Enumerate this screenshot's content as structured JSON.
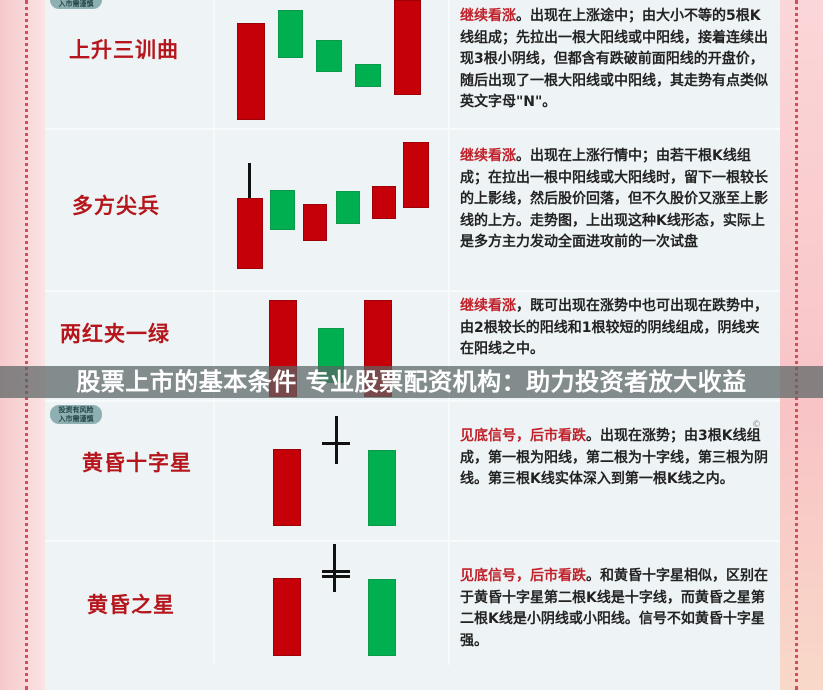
{
  "badge": {
    "line1": "投资有风险",
    "line2": "入市需谨慎"
  },
  "patterns": [
    {
      "name": "上升三训曲",
      "highlight": "继续看涨",
      "text": "。出现在上涨途中；由大小不等的5根K线组成；先拉出一根大阳线或中阳线，接着连续出现3根小阴线，但都含有跌破前面阳线的开盘价，随后出现了一根大阳线或中阳线，其走势有点类似英文字母\"N\"。"
    },
    {
      "name": "多方尖兵",
      "highlight": "继续看涨",
      "text": "。出现在上涨行情中；由若干根K线组成；在拉出一根中阳线或大阳线时，留下一根较长的上影线，然后股价回落，但不久股价又涨至上影线的上方。走势图，上出现这种K线形态，实际上是多方主力发动全面进攻前的一次试盘"
    },
    {
      "name": "两红夹一绿",
      "highlight": "继续看涨",
      "text": "，既可出现在涨势中也可出现在跌势中，由2根较长的阳线和1根较短的阴线组成，阴线夹在阳线之中。"
    },
    {
      "name": "黄昏十字星",
      "highlight": "见底信号，后市看跌",
      "text": "。出现在涨势；由3根K线组成，第一根为阳线，第二根为十字线，第三根为阴线。第三根K线实体深入到第一根K线之内。"
    },
    {
      "name": "黄昏之星",
      "highlight": "见底信号，后市看跌",
      "text": "。和黄昏十字星相似，区别在于黄昏十字星第二根K线是十字线，而黄昏之星第二根K线是小阴线或小阳线。信号不如黄昏十字星强。"
    }
  ],
  "banner": "股票上市的基本条件 专业股票配资机构：助力投资者放大收益",
  "colors": {
    "bull": "#c60008",
    "bear": "#00b050",
    "label": "#b5161c",
    "highlight": "#c0202a"
  }
}
